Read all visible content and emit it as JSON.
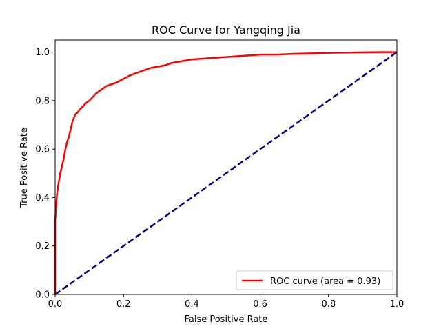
{
  "chart_data": {
    "type": "line",
    "title": "ROC Curve for Yangqing Jia",
    "xlabel": "False Positive Rate",
    "ylabel": "True Positive Rate",
    "xlim": [
      0.0,
      1.0
    ],
    "ylim": [
      0.0,
      1.05
    ],
    "x_ticks": [
      "0.0",
      "0.2",
      "0.4",
      "0.6",
      "0.8",
      "1.0"
    ],
    "y_ticks": [
      "0.0",
      "0.2",
      "0.4",
      "0.6",
      "0.8",
      "1.0"
    ],
    "grid": false,
    "legend_position": "lower-right",
    "series": [
      {
        "name": "ROC curve (area = 0.93)",
        "color": "#ff0000",
        "style": "solid",
        "x": [
          0.0,
          0.0,
          0.002,
          0.004,
          0.006,
          0.01,
          0.015,
          0.02,
          0.025,
          0.03,
          0.035,
          0.04,
          0.045,
          0.05,
          0.055,
          0.06,
          0.065,
          0.07,
          0.08,
          0.09,
          0.1,
          0.11,
          0.12,
          0.13,
          0.14,
          0.15,
          0.16,
          0.17,
          0.18,
          0.2,
          0.22,
          0.24,
          0.26,
          0.28,
          0.3,
          0.32,
          0.34,
          0.36,
          0.38,
          0.4,
          0.45,
          0.5,
          0.55,
          0.6,
          0.65,
          0.7,
          0.75,
          0.8,
          0.85,
          0.9,
          0.95,
          1.0
        ],
        "y": [
          0.0,
          0.3,
          0.35,
          0.39,
          0.42,
          0.46,
          0.5,
          0.53,
          0.56,
          0.6,
          0.63,
          0.65,
          0.68,
          0.71,
          0.73,
          0.745,
          0.75,
          0.76,
          0.775,
          0.79,
          0.8,
          0.815,
          0.83,
          0.84,
          0.85,
          0.86,
          0.865,
          0.87,
          0.875,
          0.89,
          0.905,
          0.915,
          0.925,
          0.935,
          0.94,
          0.945,
          0.955,
          0.96,
          0.965,
          0.97,
          0.975,
          0.98,
          0.985,
          0.99,
          0.99,
          0.993,
          0.995,
          0.997,
          0.998,
          0.999,
          1.0,
          1.0
        ]
      },
      {
        "name": "",
        "color": "#000080",
        "style": "dashed",
        "x": [
          0.0,
          1.0
        ],
        "y": [
          0.0,
          1.0
        ]
      }
    ]
  }
}
